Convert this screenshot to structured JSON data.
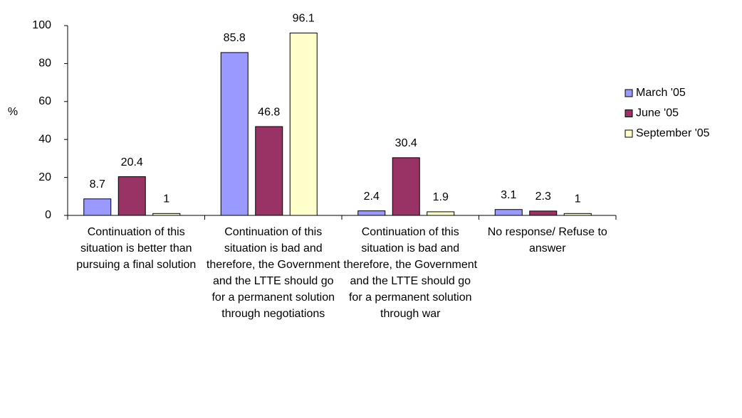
{
  "chart_data": {
    "type": "bar",
    "ylabel": "%",
    "categories": [
      "Continuation of this situation is better than pursuing a final solution",
      "Continuation of this situation is bad and therefore, the Government and the LTTE should go for a permanent solution through negotiations",
      "Continuation of this situation is bad and therefore, the Government and the LTTE should go for a permanent solution through war",
      "No response/ Refuse to answer"
    ],
    "series": [
      {
        "name": "March '05",
        "color": "#9999ff",
        "values": [
          8.7,
          85.8,
          2.4,
          3.1
        ]
      },
      {
        "name": "June '05",
        "color": "#993366",
        "values": [
          20.4,
          46.8,
          30.4,
          2.3
        ]
      },
      {
        "name": "September '05",
        "color": "#ffffcc",
        "values": [
          1,
          96.1,
          1.9,
          1
        ]
      }
    ],
    "ylim": [
      0,
      100
    ],
    "yticks": [
      0,
      20,
      40,
      60,
      80,
      100
    ],
    "grid": false,
    "legend": "right"
  }
}
